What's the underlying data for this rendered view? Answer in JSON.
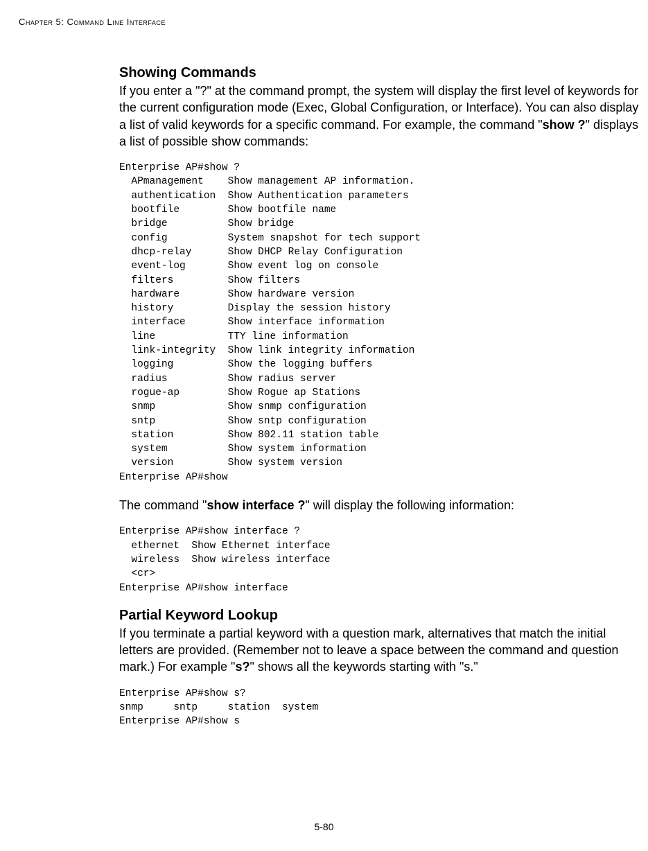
{
  "header": {
    "chapter_label": "Chapter 5: Command Line Interface"
  },
  "section1": {
    "title": "Showing Commands",
    "para_parts": {
      "p1a": "If you enter a \"?\" at the command prompt, the system will display the first level of keywords for the current configuration mode (Exec, Global Configuration, or Interface). You can also display a list of valid keywords for a specific command. For example, the command \"",
      "p1b": "show ?",
      "p1c": "\" displays a list of possible show commands:"
    },
    "code1": "Enterprise AP#show ?\n  APmanagement    Show management AP information.\n  authentication  Show Authentication parameters\n  bootfile        Show bootfile name\n  bridge          Show bridge\n  config          System snapshot for tech support\n  dhcp-relay      Show DHCP Relay Configuration\n  event-log       Show event log on console\n  filters         Show filters\n  hardware        Show hardware version\n  history         Display the session history\n  interface       Show interface information\n  line            TTY line information\n  link-integrity  Show link integrity information\n  logging         Show the logging buffers\n  radius          Show radius server\n  rogue-ap        Show Rogue ap Stations\n  snmp            Show snmp configuration\n  sntp            Show sntp configuration\n  station         Show 802.11 station table\n  system          Show system information\n  version         Show system version\nEnterprise AP#show",
    "para2_parts": {
      "a": "The command \"",
      "b": "show interface ?",
      "c": "\" will display the following information:"
    },
    "code2": "Enterprise AP#show interface ?\n  ethernet  Show Ethernet interface\n  wireless  Show wireless interface\n  <cr>\nEnterprise AP#show interface"
  },
  "section2": {
    "title": "Partial Keyword Lookup",
    "para_parts": {
      "a": "If you terminate a partial keyword with a question mark, alternatives that match the initial letters are provided. (Remember not to leave a space between the command and question mark.) For example \"",
      "b": "s?",
      "c": "\" shows all the keywords starting with \"s.\""
    },
    "code": "Enterprise AP#show s?\nsnmp     sntp     station  system\nEnterprise AP#show s"
  },
  "footer": {
    "page": "5-80"
  }
}
